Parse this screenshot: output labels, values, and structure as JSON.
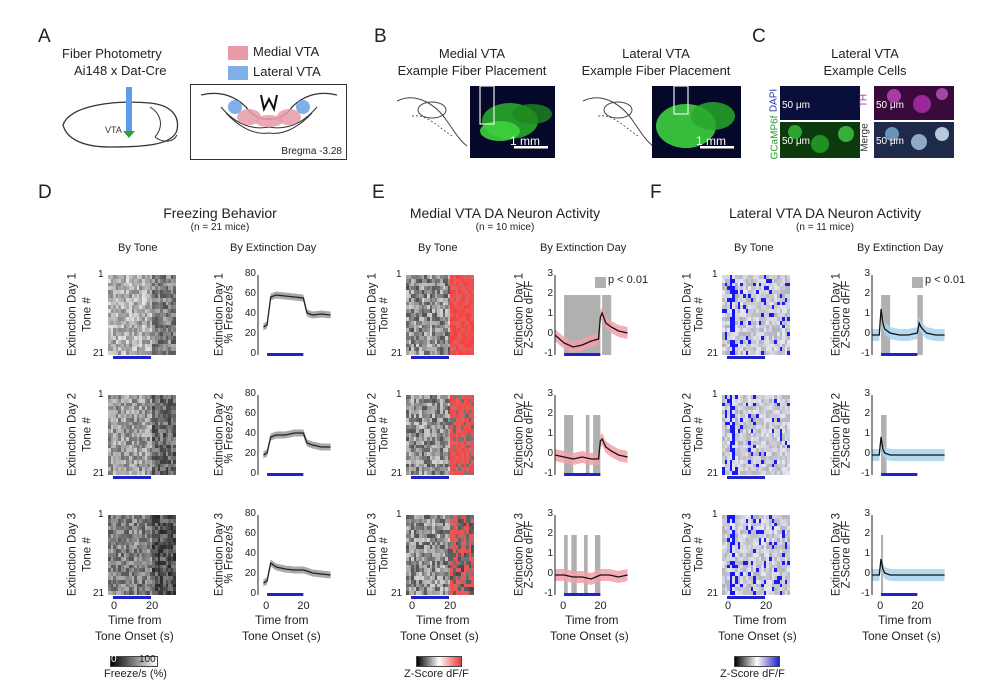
{
  "panels": {
    "A": {
      "letter": "A",
      "title": "Fiber Photometry",
      "subtitle": "Ai148 x Dat-Cre",
      "legend": [
        {
          "label": "Medial VTA",
          "color": "#e89aa8"
        },
        {
          "label": "Lateral VTA",
          "color": "#7fb0e8"
        }
      ],
      "vta_label": "VTA",
      "bregma": "Bregma -3.28"
    },
    "B": {
      "letter": "B",
      "left_title_1": "Medial VTA",
      "left_title_2": "Example Fiber Placement",
      "right_title_1": "Lateral VTA",
      "right_title_2": "Example Fiber Placement",
      "scale_left": "1 mm",
      "scale_right": "1 mm"
    },
    "C": {
      "letter": "C",
      "title_1": "Lateral  VTA",
      "title_2": "Example Cells",
      "channels": [
        {
          "side": "DAPI",
          "scale": "50 μm",
          "color": "#1a1a6e"
        },
        {
          "side": "TH",
          "scale": "50 μm",
          "color": "#b030b0"
        },
        {
          "side": "GCaMP6f",
          "scale": "50 μm",
          "color": "#2a9a2a"
        },
        {
          "side": "Merge",
          "scale": "50 μm",
          "color": "#556"
        }
      ]
    },
    "D": {
      "letter": "D",
      "title": "Freezing Behavior",
      "n": "(n = 21 mice)",
      "col_left": "By Tone",
      "col_right": "By Extinction Day",
      "rows": [
        {
          "day": "Extinction Day 1",
          "heat_y": "Tone #",
          "line_y": "% Freeze/s"
        },
        {
          "day": "Extinction Day 2",
          "heat_y": "Tone #",
          "line_y": "% Freeze/s"
        },
        {
          "day": "Extinction Day 3",
          "heat_y": "Tone #",
          "line_y": "% Freeze/s"
        }
      ],
      "xlabel_1": "Time from",
      "xlabel_2": "Tone Onset (s)",
      "colorbar_min": "0",
      "colorbar_max": "100",
      "colorbar_label": "Freeze/s (%)"
    },
    "E": {
      "letter": "E",
      "title": "Medial VTA DA Neuron Activity",
      "n": "(n = 10 mice)",
      "col_left": "By Tone",
      "col_right": "By Extinction Day",
      "rows": [
        {
          "day": "Extinction Day 1",
          "heat_y": "Tone #",
          "line_y": "Z-Score dF/F"
        },
        {
          "day": "Extinction Day 2",
          "heat_y": "Tone #",
          "line_y": "Z-Score dF/F"
        },
        {
          "day": "Extinction Day 3",
          "heat_y": "Tone #",
          "line_y": "Z-Score dF/F"
        }
      ],
      "sig_label": "p < 0.01",
      "xlabel_1": "Time from",
      "xlabel_2": "Tone Onset (s)",
      "colorbar_label": "Z-Score dF/F"
    },
    "F": {
      "letter": "F",
      "title": "Lateral VTA DA Neuron Activity",
      "n": "(n = 11 mice)",
      "col_left": "By Tone",
      "col_right": "By Extinction Day",
      "rows": [
        {
          "day": "Extinction Day 1",
          "heat_y": "Tone #",
          "line_y": "Z-Score dF/F"
        },
        {
          "day": "Extinction Day 2",
          "heat_y": "Tone #",
          "line_y": "Z-Score dF/F"
        },
        {
          "day": "Extinction Day 3",
          "heat_y": "Tone #",
          "line_y": "Z-Score dF/F"
        }
      ],
      "sig_label": "p < 0.01",
      "xlabel_1": "Time from",
      "xlabel_2": "Tone Onset (s)",
      "colorbar_label": "Z-Score dF/F"
    }
  },
  "heat_ticks": {
    "y_top": "1",
    "y_bottom": "21",
    "x": [
      "0",
      "20"
    ]
  },
  "chart_data": [
    {
      "type": "line",
      "title": "Freezing Behavior - Extinction Day 1",
      "x": [
        -2,
        0,
        2,
        5,
        10,
        15,
        20,
        22,
        25,
        30,
        35
      ],
      "y": [
        28,
        30,
        58,
        60,
        59,
        58,
        57,
        42,
        40,
        41,
        40
      ],
      "ylabel": "% Freeze/s",
      "ylim": [
        0,
        80
      ],
      "yticks": [
        0,
        20,
        40,
        60,
        80
      ],
      "tone": [
        0,
        20
      ]
    },
    {
      "type": "line",
      "title": "Freezing Behavior - Extinction Day 2",
      "x": [
        -2,
        0,
        2,
        5,
        10,
        15,
        20,
        22,
        25,
        30,
        35
      ],
      "y": [
        20,
        22,
        38,
        40,
        40,
        42,
        42,
        32,
        30,
        28,
        28
      ],
      "ylabel": "% Freeze/s",
      "ylim": [
        0,
        80
      ],
      "yticks": [
        0,
        20,
        40,
        60,
        80
      ],
      "tone": [
        0,
        20
      ]
    },
    {
      "type": "line",
      "title": "Freezing Behavior - Extinction Day 3",
      "x": [
        -2,
        0,
        2,
        5,
        10,
        15,
        20,
        22,
        25,
        30,
        35
      ],
      "y": [
        12,
        14,
        32,
        28,
        26,
        25,
        25,
        24,
        22,
        21,
        20
      ],
      "ylabel": "% Freeze/s",
      "ylim": [
        0,
        80
      ],
      "yticks": [
        0,
        20,
        40,
        60,
        80
      ],
      "tone": [
        0,
        20
      ]
    },
    {
      "type": "line",
      "title": "Medial VTA - Extinction Day 1",
      "x": [
        -5,
        0,
        5,
        10,
        15,
        19,
        20,
        21,
        23,
        26,
        30,
        35
      ],
      "y": [
        0.0,
        -0.4,
        -0.6,
        -0.5,
        -0.3,
        -0.2,
        0.9,
        1.1,
        0.6,
        0.4,
        0.2,
        0.1
      ],
      "ylabel": "Z-Score dF/F",
      "ylim": [
        -1,
        3
      ],
      "yticks": [
        -1,
        0,
        1,
        2,
        3
      ],
      "sig_regions": [
        [
          0,
          20
        ],
        [
          21,
          26
        ]
      ],
      "tone": [
        0,
        20
      ]
    },
    {
      "type": "line",
      "title": "Medial VTA - Extinction Day 2",
      "x": [
        -5,
        0,
        5,
        10,
        15,
        19,
        20,
        21,
        23,
        26,
        30,
        35
      ],
      "y": [
        0.0,
        -0.1,
        -0.2,
        -0.1,
        -0.2,
        -0.2,
        0.7,
        0.8,
        0.4,
        0.2,
        0.0,
        -0.1
      ],
      "ylabel": "Z-Score dF/F",
      "ylim": [
        -1,
        3
      ],
      "yticks": [
        -1,
        0,
        1,
        2,
        3
      ],
      "sig_regions": [
        [
          0,
          5
        ],
        [
          12,
          14
        ],
        [
          16,
          20
        ]
      ],
      "tone": [
        0,
        20
      ]
    },
    {
      "type": "line",
      "title": "Medial VTA - Extinction Day 3",
      "x": [
        -5,
        0,
        5,
        10,
        15,
        20,
        25,
        30,
        35
      ],
      "y": [
        0.0,
        0.0,
        -0.1,
        -0.1,
        -0.2,
        0.0,
        0.0,
        -0.1,
        0.0
      ],
      "ylabel": "Z-Score dF/F",
      "ylim": [
        -1,
        3
      ],
      "yticks": [
        -1,
        0,
        1,
        2,
        3
      ],
      "sig_regions": [
        [
          0,
          2
        ],
        [
          4,
          7
        ],
        [
          11,
          13
        ],
        [
          17,
          20
        ]
      ],
      "tone": [
        0,
        20
      ]
    },
    {
      "type": "line",
      "title": "Lateral VTA - Extinction Day 1",
      "x": [
        -5,
        -1,
        0,
        1,
        2,
        5,
        10,
        15,
        20,
        21,
        22,
        25,
        30,
        35
      ],
      "y": [
        0.0,
        0.0,
        1.3,
        0.6,
        0.3,
        0.1,
        0.0,
        0.0,
        0.1,
        0.6,
        0.4,
        0.1,
        0.0,
        0.0
      ],
      "ylabel": "Z-Score dF/F",
      "ylim": [
        -1,
        3
      ],
      "yticks": [
        -1,
        0,
        1,
        2,
        3
      ],
      "sig_regions": [
        [
          0,
          5
        ],
        [
          20,
          23
        ]
      ],
      "tone": [
        0,
        20
      ]
    },
    {
      "type": "line",
      "title": "Lateral VTA - Extinction Day 2",
      "x": [
        -5,
        -1,
        0,
        1,
        2,
        5,
        10,
        15,
        20,
        25,
        30,
        35
      ],
      "y": [
        0.0,
        0.0,
        0.9,
        0.3,
        0.1,
        0.0,
        0.0,
        0.0,
        0.0,
        0.0,
        0.0,
        0.0
      ],
      "ylabel": "Z-Score dF/F",
      "ylim": [
        -1,
        3
      ],
      "yticks": [
        -1,
        0,
        1,
        2,
        3
      ],
      "sig_regions": [
        [
          0,
          3
        ]
      ],
      "tone": [
        0,
        20
      ]
    },
    {
      "type": "line",
      "title": "Lateral VTA - Extinction Day 3",
      "x": [
        -5,
        -1,
        0,
        1,
        2,
        5,
        10,
        15,
        20,
        25,
        30,
        35
      ],
      "y": [
        0.0,
        0.0,
        0.8,
        0.3,
        0.1,
        0.0,
        0.0,
        0.0,
        0.0,
        0.0,
        0.0,
        0.0
      ],
      "ylabel": "Z-Score dF/F",
      "ylim": [
        -1,
        3
      ],
      "yticks": [
        -1,
        0,
        1,
        2,
        3
      ],
      "sig_regions": [
        [
          0,
          1
        ]
      ],
      "tone": [
        0,
        20
      ]
    }
  ],
  "tick_labels": {
    "freeze_y": [
      "0",
      "20",
      "40",
      "60",
      "80"
    ],
    "z_y": [
      "-1",
      "0",
      "1",
      "2",
      "3"
    ],
    "x": [
      "0",
      "20"
    ]
  },
  "colors": {
    "tone_bar": "#2222cc",
    "freeze_line": "#222222",
    "freeze_band": "#9a9a9a",
    "medial_band": "#f2a0a8",
    "lateral_band": "#a8d4ec",
    "sig_fill": "#b0b0b0"
  }
}
